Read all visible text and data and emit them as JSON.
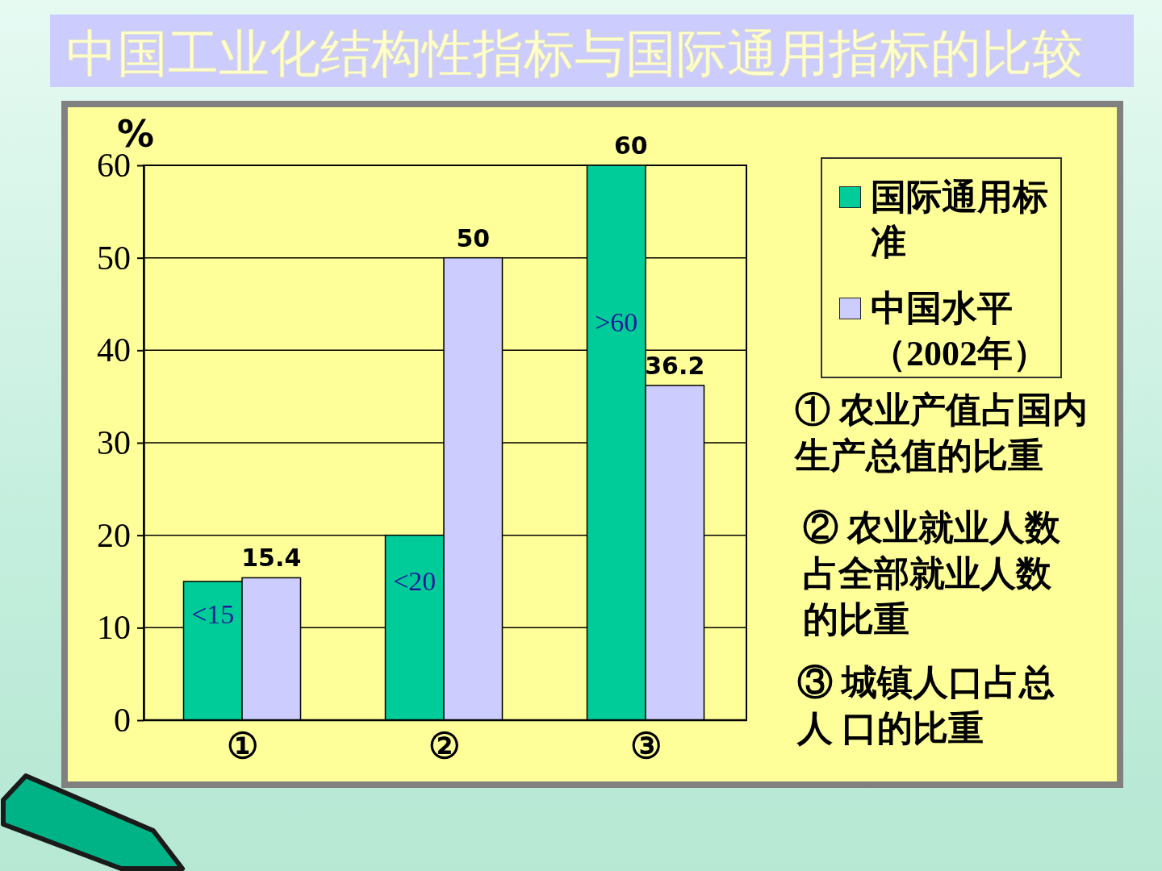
{
  "chart_data": {
    "type": "bar",
    "title": "中国工业化结构性指标与国际通用指标的比较",
    "ylabel": "%",
    "categories": [
      "①",
      "②",
      "③"
    ],
    "series": [
      {
        "name": "国际通用标准",
        "color": "#00cc99",
        "values": [
          15,
          20,
          60
        ],
        "value_labels": [
          "<15",
          "<20",
          ">60"
        ]
      },
      {
        "name": "中国水平（2002年）",
        "color": "#ccccff",
        "values": [
          15.4,
          50,
          36.2
        ],
        "value_labels": [
          "15.4",
          "50",
          "36.2"
        ]
      }
    ],
    "ylim": [
      0,
      60
    ],
    "yticks": [
      0,
      10,
      20,
      30,
      40,
      50,
      60
    ],
    "grid": "y",
    "legend": "right",
    "annotations": [
      {
        "text": "60",
        "x": "③",
        "y": 60
      },
      "① 农业产值占国内生产总值的比重",
      "② 农业就业人数占全部就业人数的比重",
      "③ 城镇人口占总人 口的比重"
    ]
  }
}
